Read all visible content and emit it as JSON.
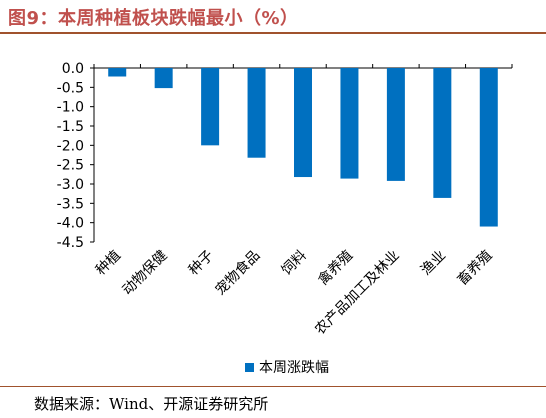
{
  "title": "图9：本周种植板块跌幅最小（%）",
  "source": "数据来源：Wind、开源证券研究所",
  "chart_data": {
    "type": "bar",
    "categories": [
      "种植",
      "动物保健",
      "种子",
      "宠物食品",
      "饲料",
      "禽养殖",
      "农产品加工及林业",
      "渔业",
      "畜养殖"
    ],
    "series": [
      {
        "name": "本周涨跌幅",
        "values": [
          -0.22,
          -0.52,
          -2.0,
          -2.32,
          -2.82,
          -2.86,
          -2.92,
          -3.36,
          -4.1
        ]
      }
    ],
    "ylim": [
      -4.5,
      0.0
    ],
    "yticks": [
      "0.0",
      "-0.5",
      "-1.0",
      "-1.5",
      "-2.0",
      "-2.5",
      "-3.0",
      "-3.5",
      "-4.0",
      "-4.5"
    ],
    "grid": false,
    "legend": "bottom-center",
    "bar_color": "#0070c0"
  }
}
